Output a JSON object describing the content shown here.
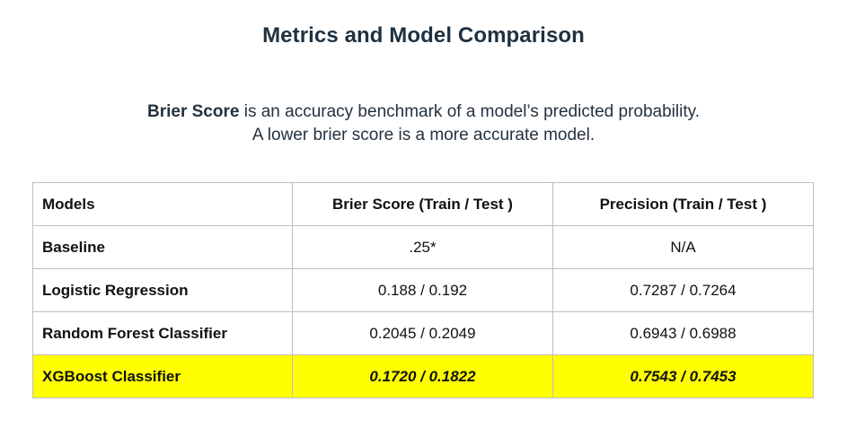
{
  "title": "Metrics and Model Comparison",
  "description": {
    "term": "Brier Score",
    "line1_rest": " is an accuracy benchmark of a model’s predicted probability.",
    "line2": "A lower brier score is a more accurate model."
  },
  "table": {
    "headers": [
      "Models",
      "Brier Score (Train / Test )",
      "Precision (Train / Test )"
    ],
    "rows": [
      {
        "model": "Baseline",
        "brier": ".25*",
        "precision": "N/A"
      },
      {
        "model": "Logistic Regression",
        "brier": "0.188 / 0.192",
        "precision": "0.7287 / 0.7264"
      },
      {
        "model": "Random Forest Classifier",
        "brier": "0.2045 / 0.2049",
        "precision": "0.6943 / 0.6988"
      },
      {
        "model": "XGBoost Classifier",
        "brier": "0.1720 / 0.1822",
        "precision": "0.7543 / 0.7453"
      }
    ],
    "highlight_color": "#ffff00"
  }
}
